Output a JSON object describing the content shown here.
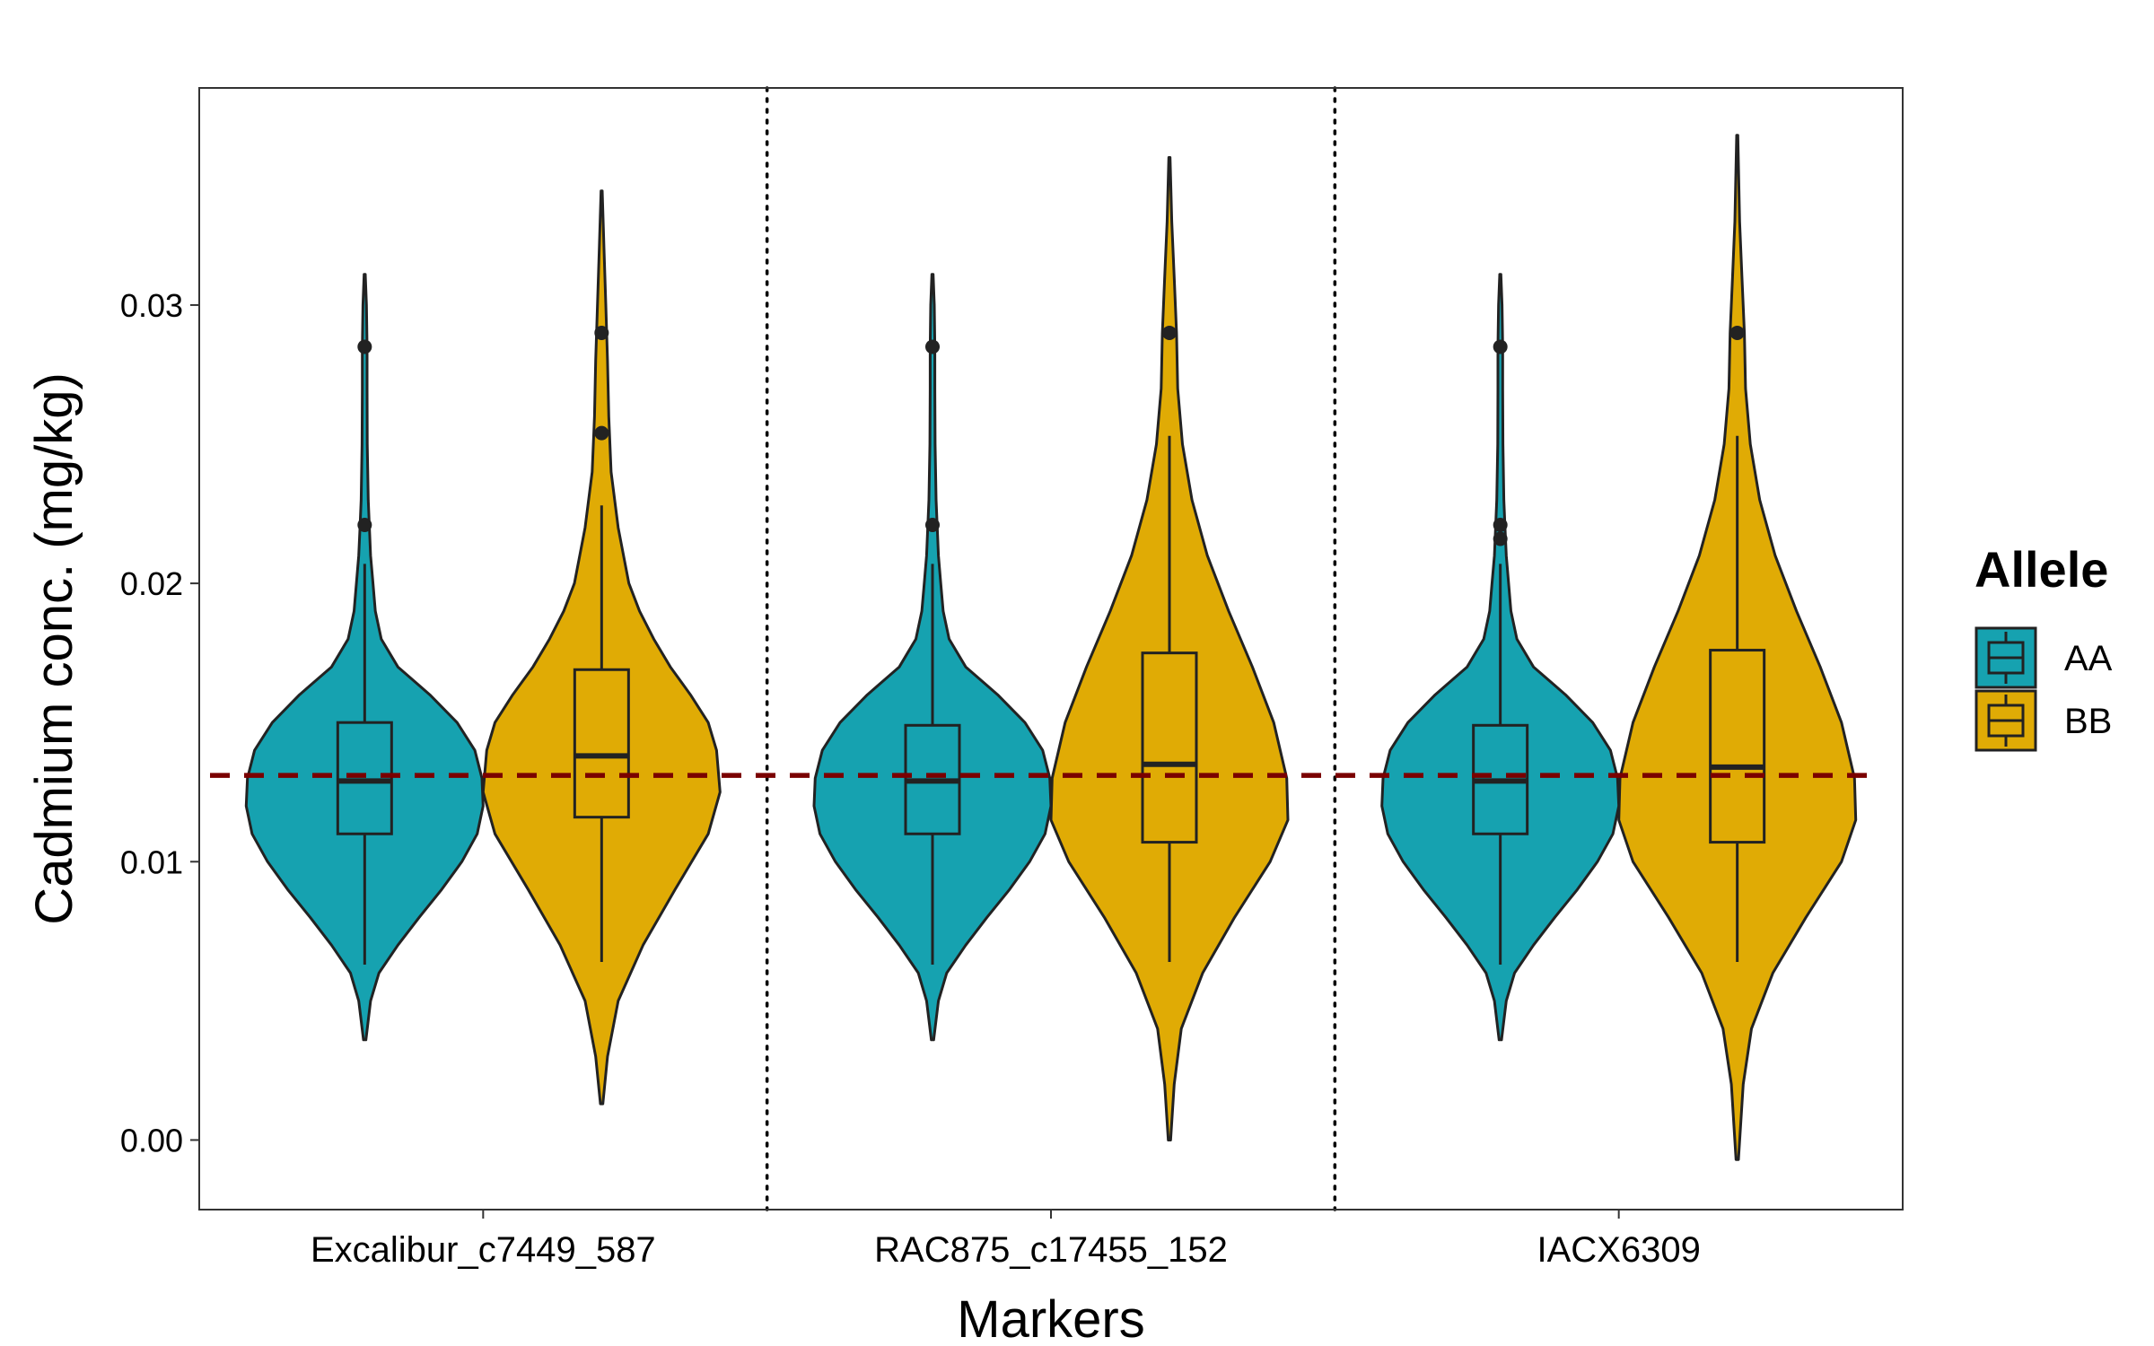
{
  "chart_data": {
    "type": "violin",
    "xlabel": "Markers",
    "ylabel": "Cadmium conc. (mg/kg)",
    "ylim": [
      -0.0025,
      0.0378
    ],
    "yticks": [
      0.0,
      0.01,
      0.02,
      0.03
    ],
    "ytick_labels": [
      "0.00",
      "0.01",
      "0.02",
      "0.03"
    ],
    "categories": [
      "Excalibur_c7449_587",
      "RAC875_c17455_152",
      "IACX6309"
    ],
    "grid": false,
    "legend": {
      "title": "Allele",
      "placement": "right",
      "entries": [
        {
          "label": "AA",
          "color": "#16A2B0"
        },
        {
          "label": "BB",
          "color": "#E0AB05"
        }
      ]
    },
    "reference_line": {
      "value": 0.0131,
      "color": "#7A0000",
      "style": "dashed"
    },
    "separators": {
      "style": "dotted",
      "color": "#000000"
    },
    "groups": [
      {
        "marker": "Excalibur_c7449_587",
        "violins": [
          {
            "allele": "AA",
            "box": {
              "q1": 0.011,
              "median": 0.0129,
              "q3": 0.015,
              "whisker_low": 0.0063,
              "whisker_high": 0.0207
            },
            "outliers": [
              0.0221,
              0.0285
            ],
            "range": [
              0.0036,
              0.0311
            ],
            "density": [
              [
                0.0036,
                0.01
              ],
              [
                0.005,
                0.05
              ],
              [
                0.006,
                0.12
              ],
              [
                0.007,
                0.28
              ],
              [
                0.008,
                0.46
              ],
              [
                0.009,
                0.65
              ],
              [
                0.01,
                0.82
              ],
              [
                0.011,
                0.95
              ],
              [
                0.012,
                1.0
              ],
              [
                0.013,
                0.99
              ],
              [
                0.014,
                0.93
              ],
              [
                0.015,
                0.78
              ],
              [
                0.016,
                0.55
              ],
              [
                0.017,
                0.28
              ],
              [
                0.018,
                0.14
              ],
              [
                0.019,
                0.09
              ],
              [
                0.02,
                0.07
              ],
              [
                0.021,
                0.05
              ],
              [
                0.022,
                0.04
              ],
              [
                0.023,
                0.03
              ],
              [
                0.025,
                0.022
              ],
              [
                0.027,
                0.02
              ],
              [
                0.0285,
                0.02
              ],
              [
                0.03,
                0.015
              ],
              [
                0.0311,
                0.005
              ]
            ]
          },
          {
            "allele": "BB",
            "box": {
              "q1": 0.0116,
              "median": 0.0138,
              "q3": 0.0169,
              "whisker_low": 0.0064,
              "whisker_high": 0.0228
            },
            "outliers": [
              0.0254,
              0.029
            ],
            "range": [
              0.0013,
              0.0341
            ],
            "density": [
              [
                0.0013,
                0.01
              ],
              [
                0.003,
                0.05
              ],
              [
                0.005,
                0.14
              ],
              [
                0.007,
                0.35
              ],
              [
                0.009,
                0.62
              ],
              [
                0.011,
                0.9
              ],
              [
                0.0125,
                1.0
              ],
              [
                0.014,
                0.97
              ],
              [
                0.015,
                0.9
              ],
              [
                0.016,
                0.75
              ],
              [
                0.017,
                0.58
              ],
              [
                0.018,
                0.44
              ],
              [
                0.019,
                0.32
              ],
              [
                0.02,
                0.23
              ],
              [
                0.022,
                0.14
              ],
              [
                0.024,
                0.08
              ],
              [
                0.026,
                0.06
              ],
              [
                0.028,
                0.05
              ],
              [
                0.03,
                0.035
              ],
              [
                0.032,
                0.02
              ],
              [
                0.0341,
                0.005
              ]
            ]
          }
        ]
      },
      {
        "marker": "RAC875_c17455_152",
        "violins": [
          {
            "allele": "AA",
            "box": {
              "q1": 0.011,
              "median": 0.0129,
              "q3": 0.0149,
              "whisker_low": 0.0063,
              "whisker_high": 0.0207
            },
            "outliers": [
              0.0221,
              0.0285
            ],
            "range": [
              0.0036,
              0.0311
            ],
            "density": [
              [
                0.0036,
                0.01
              ],
              [
                0.005,
                0.05
              ],
              [
                0.006,
                0.12
              ],
              [
                0.007,
                0.28
              ],
              [
                0.008,
                0.46
              ],
              [
                0.009,
                0.65
              ],
              [
                0.01,
                0.82
              ],
              [
                0.011,
                0.95
              ],
              [
                0.012,
                1.0
              ],
              [
                0.013,
                0.99
              ],
              [
                0.014,
                0.93
              ],
              [
                0.015,
                0.78
              ],
              [
                0.016,
                0.55
              ],
              [
                0.017,
                0.28
              ],
              [
                0.018,
                0.14
              ],
              [
                0.019,
                0.09
              ],
              [
                0.02,
                0.07
              ],
              [
                0.021,
                0.05
              ],
              [
                0.022,
                0.04
              ],
              [
                0.023,
                0.03
              ],
              [
                0.025,
                0.022
              ],
              [
                0.027,
                0.02
              ],
              [
                0.0285,
                0.02
              ],
              [
                0.03,
                0.015
              ],
              [
                0.0311,
                0.005
              ]
            ]
          },
          {
            "allele": "BB",
            "box": {
              "q1": 0.0107,
              "median": 0.0135,
              "q3": 0.0175,
              "whisker_low": 0.0064,
              "whisker_high": 0.0253
            },
            "outliers": [
              0.029
            ],
            "range": [
              0.0,
              0.0353
            ],
            "density": [
              [
                0.0,
                0.01
              ],
              [
                0.002,
                0.04
              ],
              [
                0.004,
                0.1
              ],
              [
                0.006,
                0.28
              ],
              [
                0.008,
                0.55
              ],
              [
                0.01,
                0.85
              ],
              [
                0.0115,
                1.0
              ],
              [
                0.013,
                0.99
              ],
              [
                0.015,
                0.88
              ],
              [
                0.017,
                0.7
              ],
              [
                0.019,
                0.5
              ],
              [
                0.021,
                0.32
              ],
              [
                0.023,
                0.19
              ],
              [
                0.025,
                0.11
              ],
              [
                0.027,
                0.07
              ],
              [
                0.029,
                0.06
              ],
              [
                0.031,
                0.04
              ],
              [
                0.033,
                0.02
              ],
              [
                0.0353,
                0.005
              ]
            ]
          }
        ]
      },
      {
        "marker": "IACX6309",
        "violins": [
          {
            "allele": "AA",
            "box": {
              "q1": 0.011,
              "median": 0.0129,
              "q3": 0.0149,
              "whisker_low": 0.0063,
              "whisker_high": 0.0207
            },
            "outliers": [
              0.0216,
              0.0221,
              0.0285
            ],
            "range": [
              0.0036,
              0.0311
            ],
            "density": [
              [
                0.0036,
                0.01
              ],
              [
                0.005,
                0.05
              ],
              [
                0.006,
                0.12
              ],
              [
                0.007,
                0.28
              ],
              [
                0.008,
                0.46
              ],
              [
                0.009,
                0.65
              ],
              [
                0.01,
                0.82
              ],
              [
                0.011,
                0.95
              ],
              [
                0.012,
                1.0
              ],
              [
                0.013,
                0.99
              ],
              [
                0.014,
                0.93
              ],
              [
                0.015,
                0.78
              ],
              [
                0.016,
                0.55
              ],
              [
                0.017,
                0.28
              ],
              [
                0.018,
                0.14
              ],
              [
                0.019,
                0.09
              ],
              [
                0.02,
                0.07
              ],
              [
                0.021,
                0.05
              ],
              [
                0.022,
                0.04
              ],
              [
                0.023,
                0.03
              ],
              [
                0.025,
                0.022
              ],
              [
                0.027,
                0.02
              ],
              [
                0.0285,
                0.02
              ],
              [
                0.03,
                0.015
              ],
              [
                0.0311,
                0.005
              ]
            ]
          },
          {
            "allele": "BB",
            "box": {
              "q1": 0.0107,
              "median": 0.0134,
              "q3": 0.0176,
              "whisker_low": 0.0064,
              "whisker_high": 0.0253
            },
            "outliers": [
              0.029
            ],
            "range": [
              -0.0007,
              0.0361
            ],
            "density": [
              [
                -0.0007,
                0.01
              ],
              [
                0.002,
                0.05
              ],
              [
                0.004,
                0.12
              ],
              [
                0.006,
                0.3
              ],
              [
                0.008,
                0.58
              ],
              [
                0.01,
                0.88
              ],
              [
                0.0115,
                1.0
              ],
              [
                0.013,
                0.99
              ],
              [
                0.015,
                0.88
              ],
              [
                0.017,
                0.7
              ],
              [
                0.019,
                0.5
              ],
              [
                0.021,
                0.32
              ],
              [
                0.023,
                0.19
              ],
              [
                0.025,
                0.11
              ],
              [
                0.027,
                0.07
              ],
              [
                0.029,
                0.06
              ],
              [
                0.031,
                0.04
              ],
              [
                0.033,
                0.02
              ],
              [
                0.0361,
                0.005
              ]
            ]
          }
        ]
      }
    ]
  }
}
